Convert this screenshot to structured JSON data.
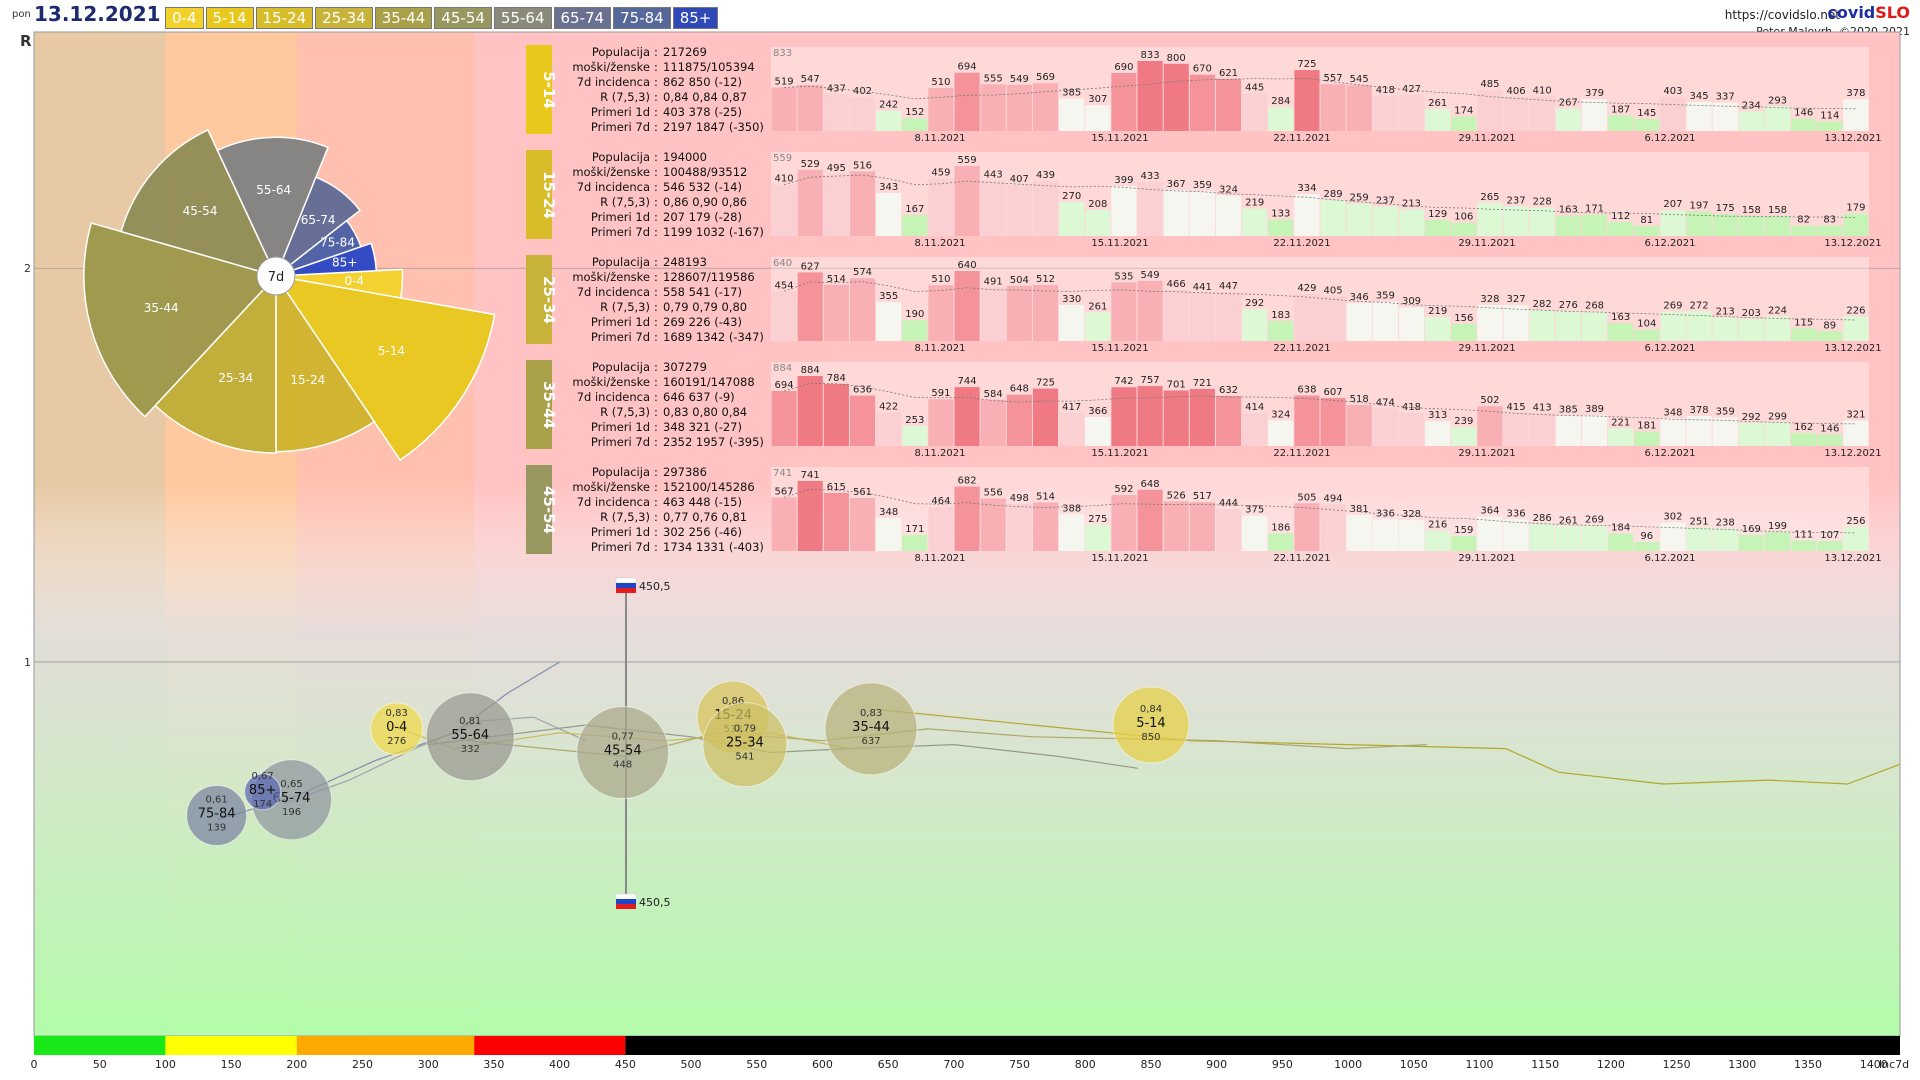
{
  "header": {
    "day": "pon",
    "date": "13.12.2021",
    "site": "https://covidslo.net",
    "brand_main": "covid",
    "brand_accent": "SLO",
    "author": "Peter Malovrh, ©2020-2021"
  },
  "age_chips": [
    {
      "label": "0-4",
      "color": "#f2d22a",
      "text_color": "#ffffff"
    },
    {
      "label": "5-14",
      "color": "#e8c81c",
      "text_color": "#ffffff"
    },
    {
      "label": "15-24",
      "color": "#d8bd2a",
      "text_color": "#ffffff"
    },
    {
      "label": "25-34",
      "color": "#c7b23a",
      "text_color": "#ffffff"
    },
    {
      "label": "35-44",
      "color": "#a9a14a",
      "text_color": "#ffffff"
    },
    {
      "label": "45-54",
      "color": "#999760",
      "text_color": "#ffffff"
    },
    {
      "label": "55-64",
      "color": "#8a8a7a",
      "text_color": "#ffffff"
    },
    {
      "label": "65-74",
      "color": "#6a7090",
      "text_color": "#ffffff"
    },
    {
      "label": "75-84",
      "color": "#56679a",
      "text_color": "#ffffff"
    },
    {
      "label": "85+",
      "color": "#2f48b8",
      "text_color": "#ffffff"
    }
  ],
  "chart_data": [
    {
      "type": "scatter",
      "ylabel": "R",
      "xlabel": "Inc7d",
      "x_ticks": [
        0,
        50,
        100,
        150,
        200,
        250,
        300,
        350,
        400,
        450,
        500,
        550,
        600,
        650,
        700,
        750,
        800,
        850,
        900,
        950,
        1000,
        1050,
        1100,
        1150,
        1200,
        1250,
        1300,
        1350,
        1400
      ],
      "x_tick_end_label": "Inc7d",
      "xlim": [
        0,
        1420
      ],
      "y_ticks": [
        1,
        2
      ],
      "ylim": [
        0.05,
        2.6
      ],
      "zone_bands": [
        {
          "from": 0,
          "to": 100,
          "color": "#e8c9a6"
        },
        {
          "from": 100,
          "to": 200,
          "color": "#ffc9a0"
        },
        {
          "from": 200,
          "to": 335,
          "color": "#ffc0b0"
        },
        {
          "from": 335,
          "to": 1420,
          "color": "#ffc3c3"
        }
      ],
      "bottom_bar": [
        {
          "from": 0,
          "to": 100,
          "color": "#18e818"
        },
        {
          "from": 100,
          "to": 200,
          "color": "#ffff00"
        },
        {
          "from": 200,
          "to": 335,
          "color": "#ffaa00"
        },
        {
          "from": 335,
          "to": 450,
          "color": "#ff0000"
        },
        {
          "from": 450,
          "to": 1420,
          "color": "#000000"
        }
      ],
      "reference": {
        "label": "450,5",
        "x": 450.5
      },
      "points": [
        {
          "group": "0-4",
          "r": "0,83",
          "inc": "276",
          "x": 276,
          "y": 0.83,
          "size": 26,
          "color": "#f0d94a"
        },
        {
          "group": "5-14",
          "r": "0,84",
          "inc": "850",
          "x": 850,
          "y": 0.84,
          "size": 38,
          "color": "#e6cf44"
        },
        {
          "group": "15-24",
          "r": "0,86",
          "inc": "532",
          "x": 532,
          "y": 0.86,
          "size": 36,
          "color": "#d9c45a"
        },
        {
          "group": "25-34",
          "r": "0,79",
          "inc": "541",
          "x": 541,
          "y": 0.79,
          "size": 42,
          "color": "#ccbf62"
        },
        {
          "group": "35-44",
          "r": "0,83",
          "inc": "637",
          "x": 637,
          "y": 0.83,
          "size": 46,
          "color": "#b7b27a"
        },
        {
          "group": "45-54",
          "r": "0,77",
          "inc": "448",
          "x": 448,
          "y": 0.77,
          "size": 46,
          "color": "#aaa88a"
        },
        {
          "group": "55-64",
          "r": "0,81",
          "inc": "332",
          "x": 332,
          "y": 0.81,
          "size": 44,
          "color": "#999990"
        },
        {
          "group": "65-74",
          "r": "0,65",
          "inc": "196",
          "x": 196,
          "y": 0.65,
          "size": 40,
          "color": "#8f95a0"
        },
        {
          "group": "75-84",
          "r": "0,61",
          "inc": "139",
          "x": 139,
          "y": 0.61,
          "size": 30,
          "color": "#7a84a2"
        },
        {
          "group": "85+",
          "r": "0,67",
          "inc": "174",
          "x": 174,
          "y": 0.67,
          "size": 18,
          "color": "#5a68b2"
        }
      ]
    },
    {
      "type": "pie",
      "center_label": "7d",
      "slices": [
        {
          "label": "0-4",
          "value": 276,
          "color": "#f2d22a"
        },
        {
          "label": "5-14",
          "value": 850,
          "color": "#e8c81c"
        },
        {
          "label": "15-24",
          "value": 532,
          "color": "#cfb32a"
        },
        {
          "label": "25-34",
          "value": 541,
          "color": "#bfae36"
        },
        {
          "label": "35-44",
          "value": 637,
          "color": "#9c984a"
        },
        {
          "label": "45-54",
          "value": 448,
          "color": "#8f8d56"
        },
        {
          "label": "55-64",
          "value": 332,
          "color": "#7f8282"
        },
        {
          "label": "65-74",
          "value": 196,
          "color": "#5f6a96"
        },
        {
          "label": "75-84",
          "value": 139,
          "color": "#4a5ea6"
        },
        {
          "label": "85+",
          "value": 174,
          "color": "#2846c4"
        }
      ]
    },
    {
      "type": "bar",
      "date_labels": [
        "8.11.2021",
        "15.11.2021",
        "22.11.2021",
        "29.11.2021",
        "6.12.2021",
        "13.12.2021"
      ],
      "panels": [
        {
          "group": "5-14",
          "color": "#e8c81c",
          "stats": [
            {
              "k": "Populacija",
              "v": "217269"
            },
            {
              "k": "moški/ženske",
              "v": "111875/105394"
            },
            {
              "k": "7d incidenca",
              "v": "862 850 (-12)"
            },
            {
              "k": "R (7,5,3)",
              "v": "0,84 0,84 0,87"
            },
            {
              "k": "Primeri 1d",
              "v": "403 378 (-25)"
            },
            {
              "k": "Primeri 7d",
              "v": "2197 1847 (-350)"
            }
          ],
          "max_label": "833",
          "values": [
            519,
            547,
            437,
            402,
            242,
            152,
            510,
            694,
            555,
            549,
            569,
            385,
            307,
            690,
            833,
            800,
            670,
            621,
            445,
            284,
            725,
            557,
            545,
            418,
            427,
            261,
            174,
            485,
            406,
            410,
            267,
            379,
            187,
            145,
            403,
            345,
            337,
            234,
            293,
            146,
            114,
            378
          ]
        },
        {
          "group": "15-24",
          "color": "#d8bd2a",
          "stats": [
            {
              "k": "Populacija",
              "v": "194000"
            },
            {
              "k": "moški/ženske",
              "v": "100488/93512"
            },
            {
              "k": "7d incidenca",
              "v": "546 532 (-14)"
            },
            {
              "k": "R (7,5,3)",
              "v": "0,86 0,90 0,86"
            },
            {
              "k": "Primeri 1d",
              "v": "207 179 (-28)"
            },
            {
              "k": "Primeri 7d",
              "v": "1199 1032 (-167)"
            }
          ],
          "max_label": "559",
          "values": [
            410,
            529,
            495,
            516,
            343,
            167,
            459,
            559,
            443,
            407,
            439,
            270,
            208,
            399,
            433,
            367,
            359,
            324,
            219,
            133,
            334,
            289,
            259,
            237,
            213,
            129,
            106,
            265,
            237,
            228,
            163,
            171,
            112,
            81,
            207,
            197,
            175,
            158,
            158,
            82,
            83,
            179
          ]
        },
        {
          "group": "25-34",
          "color": "#c7b23a",
          "stats": [
            {
              "k": "Populacija",
              "v": "248193"
            },
            {
              "k": "moški/ženske",
              "v": "128607/119586"
            },
            {
              "k": "7d incidenca",
              "v": "558 541 (-17)"
            },
            {
              "k": "R (7,5,3)",
              "v": "0,79 0,79 0,80"
            },
            {
              "k": "Primeri 1d",
              "v": "269 226 (-43)"
            },
            {
              "k": "Primeri 7d",
              "v": "1689 1342 (-347)"
            }
          ],
          "max_label": "640",
          "values": [
            454,
            627,
            514,
            574,
            355,
            190,
            510,
            640,
            491,
            504,
            512,
            330,
            261,
            535,
            549,
            466,
            441,
            447,
            292,
            183,
            429,
            405,
            346,
            359,
            309,
            219,
            156,
            328,
            327,
            282,
            276,
            268,
            163,
            104,
            269,
            272,
            213,
            203,
            224,
            115,
            89,
            226
          ]
        },
        {
          "group": "35-44",
          "color": "#a9a14a",
          "stats": [
            {
              "k": "Populacija",
              "v": "307279"
            },
            {
              "k": "moški/ženske",
              "v": "160191/147088"
            },
            {
              "k": "7d incidenca",
              "v": "646 637 (-9)"
            },
            {
              "k": "R (7,5,3)",
              "v": "0,83 0,80 0,84"
            },
            {
              "k": "Primeri 1d",
              "v": "348 321 (-27)"
            },
            {
              "k": "Primeri 7d",
              "v": "2352 1957 (-395)"
            }
          ],
          "max_label": "884",
          "values": [
            694,
            884,
            784,
            636,
            422,
            253,
            591,
            744,
            584,
            648,
            725,
            417,
            366,
            742,
            757,
            701,
            721,
            632,
            414,
            324,
            638,
            607,
            518,
            474,
            418,
            313,
            239,
            502,
            415,
            413,
            385,
            389,
            221,
            181,
            348,
            378,
            359,
            292,
            299,
            162,
            146,
            321
          ]
        },
        {
          "group": "45-54",
          "color": "#999760",
          "stats": [
            {
              "k": "Populacija",
              "v": "297386"
            },
            {
              "k": "moški/ženske",
              "v": "152100/145286"
            },
            {
              "k": "7d incidenca",
              "v": "463 448 (-15)"
            },
            {
              "k": "R (7,5,3)",
              "v": "0,77 0,76 0,81"
            },
            {
              "k": "Primeri 1d",
              "v": "302 256 (-46)"
            },
            {
              "k": "Primeri 7d",
              "v": "1734 1331 (-403)"
            }
          ],
          "max_label": "741",
          "values": [
            567,
            741,
            615,
            561,
            348,
            171,
            464,
            682,
            556,
            498,
            514,
            388,
            275,
            592,
            648,
            526,
            517,
            444,
            375,
            186,
            505,
            494,
            381,
            336,
            328,
            216,
            159,
            364,
            336,
            286,
            261,
            269,
            184,
            96,
            302,
            251,
            238,
            169,
            199,
            111,
            107,
            256
          ]
        }
      ]
    }
  ]
}
